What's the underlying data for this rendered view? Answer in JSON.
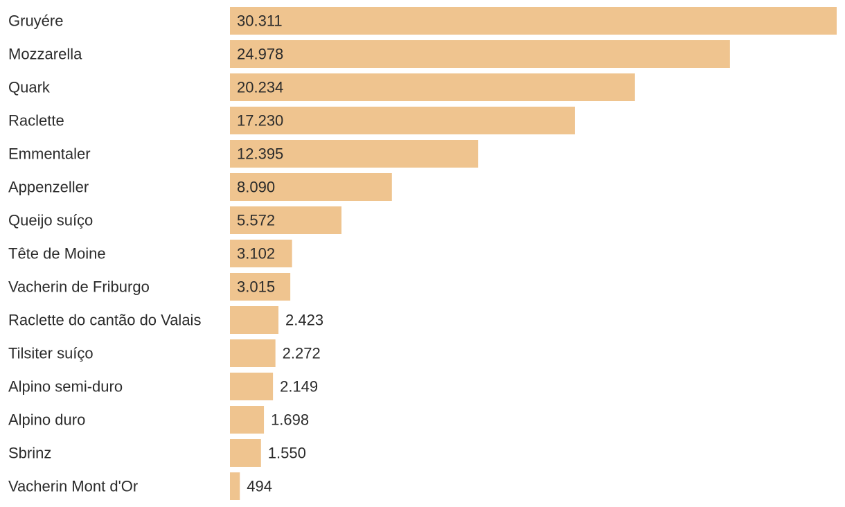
{
  "chart_data": {
    "type": "bar",
    "orientation": "horizontal",
    "categories": [
      "Gruyére",
      "Mozzarella",
      "Quark",
      "Raclette",
      "Emmentaler",
      "Appenzeller",
      "Queijo suíço",
      "Tête de Moine",
      "Vacherin de Friburgo",
      "Raclette do cantão do Valais",
      "Tilsiter suíço",
      "Alpino semi-duro",
      "Alpino duro",
      "Sbrinz",
      "Vacherin Mont d'Or"
    ],
    "values": [
      30311,
      24978,
      20234,
      17230,
      12395,
      8090,
      5572,
      3102,
      3015,
      2423,
      2272,
      2149,
      1698,
      1550,
      494
    ],
    "value_labels": [
      "30.311",
      "24.978",
      "20.234",
      "17.230",
      "12.395",
      "8.090",
      "5.572",
      "3.102",
      "3.015",
      "2.423",
      "2.272",
      "2.149",
      "1.698",
      "1.550",
      "494"
    ],
    "title": "",
    "xlabel": "",
    "ylabel": "",
    "xlim": [
      0,
      30311
    ],
    "grid": false,
    "legend": "none",
    "bar_color": "#efc48f",
    "text_color": "#2b2b2b"
  }
}
